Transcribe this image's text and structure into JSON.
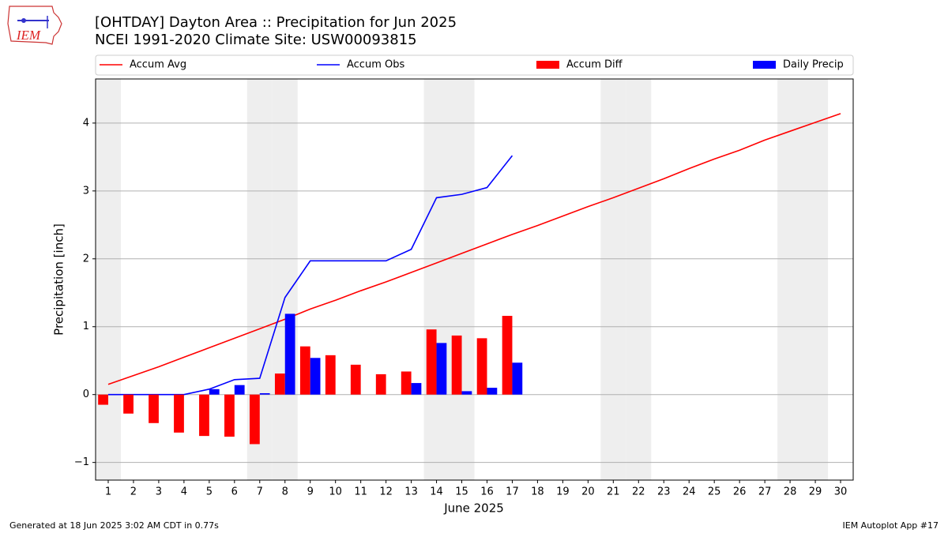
{
  "chart_data": {
    "type": "combo",
    "title": "[OHTDAY] Dayton Area :: Precipitation for Jun 2025",
    "subtitle": "NCEI 1991-2020 Climate Site: USW00093815",
    "xlabel": "June 2025",
    "ylabel": "Precipitation [inch]",
    "logo_text": "IEM",
    "footer_left": "Generated at 18 Jun 2025 3:02 AM CDT in 0.77s",
    "footer_right": "IEM Autoplot App #17",
    "x": [
      1,
      2,
      3,
      4,
      5,
      6,
      7,
      8,
      9,
      10,
      11,
      12,
      13,
      14,
      15,
      16,
      17,
      18,
      19,
      20,
      21,
      22,
      23,
      24,
      25,
      26,
      27,
      28,
      29,
      30
    ],
    "xlim": [
      0.5,
      30.5
    ],
    "xticks": [
      1,
      2,
      3,
      4,
      5,
      6,
      7,
      8,
      9,
      10,
      11,
      12,
      13,
      14,
      15,
      16,
      17,
      18,
      19,
      20,
      21,
      22,
      23,
      24,
      25,
      26,
      27,
      28,
      29,
      30
    ],
    "ylim": [
      -1.26,
      4.65
    ],
    "yticks": [
      {
        "value": -1,
        "label": "−1"
      },
      0,
      1,
      2,
      3,
      4
    ],
    "grid": true,
    "shaded_days": [
      1,
      7,
      8,
      14,
      15,
      21,
      22,
      28,
      29
    ],
    "shade_color": "#eeeeee",
    "series": [
      {
        "name": "Accum Avg",
        "type": "line",
        "color": "#ff0000",
        "values": [
          0.15,
          0.28,
          0.41,
          0.55,
          0.69,
          0.83,
          0.97,
          1.11,
          1.26,
          1.39,
          1.53,
          1.66,
          1.8,
          1.94,
          2.08,
          2.22,
          2.36,
          2.49,
          2.63,
          2.77,
          2.9,
          3.04,
          3.18,
          3.33,
          3.47,
          3.6,
          3.75,
          3.88,
          4.01,
          4.14
        ]
      },
      {
        "name": "Accum Obs",
        "type": "line",
        "color": "#0000ff",
        "values": [
          0,
          0,
          0,
          0,
          0.08,
          0.22,
          0.24,
          1.43,
          1.97,
          1.97,
          1.97,
          1.97,
          2.14,
          2.9,
          2.95,
          3.05,
          3.52,
          null,
          null,
          null,
          null,
          null,
          null,
          null,
          null,
          null,
          null,
          null,
          null,
          null
        ]
      },
      {
        "name": "Accum Diff",
        "type": "bar",
        "color": "#ff0000",
        "values": [
          -0.15,
          -0.28,
          -0.42,
          -0.56,
          -0.61,
          -0.62,
          -0.73,
          0.31,
          0.71,
          0.58,
          0.44,
          0.3,
          0.34,
          0.96,
          0.87,
          0.83,
          1.16,
          null,
          null,
          null,
          null,
          null,
          null,
          null,
          null,
          null,
          null,
          null,
          null,
          null
        ]
      },
      {
        "name": "Daily Precip",
        "type": "bar",
        "color": "#0000ff",
        "values": [
          0,
          0,
          0,
          0,
          0.08,
          0.14,
          0.02,
          1.19,
          0.54,
          0,
          0,
          0,
          0.17,
          0.76,
          0.05,
          0.1,
          0.47,
          null,
          null,
          null,
          null,
          null,
          null,
          null,
          null,
          null,
          null,
          null,
          null,
          null
        ]
      }
    ]
  }
}
